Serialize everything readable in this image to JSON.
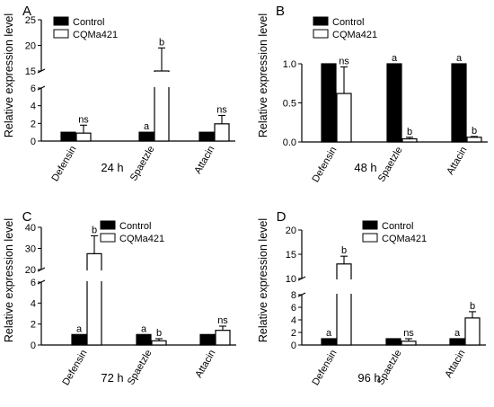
{
  "chart_data": [
    {
      "type": "bar",
      "panel_label": "A",
      "time_label": "24 h",
      "ylabel": "Relative expression level",
      "categories": [
        "Defensin",
        "Spaetzle",
        "Attacin"
      ],
      "axis_break": true,
      "y_segments": [
        {
          "range": [
            0,
            6
          ],
          "ticks": [
            "0",
            "2",
            "4",
            "6"
          ]
        },
        {
          "range": [
            15,
            25
          ],
          "ticks": [
            "15",
            "20",
            "25"
          ]
        }
      ],
      "series": [
        {
          "name": "Control",
          "color": "#000000",
          "values": [
            1,
            1,
            1
          ],
          "errors": [
            0,
            0,
            0
          ],
          "annotations": [
            "",
            "a",
            ""
          ]
        },
        {
          "name": "CQMa421",
          "color": "#ffffff",
          "values": [
            0.9,
            14.2,
            1.95
          ],
          "errors": [
            0.9,
            5.3,
            0.95
          ],
          "annotations": [
            "ns",
            "b",
            "ns"
          ]
        }
      ],
      "legend": "top-left"
    },
    {
      "type": "bar",
      "panel_label": "B",
      "time_label": "48 h",
      "ylabel": "Relative expression level",
      "categories": [
        "Defensin",
        "Spaetzle",
        "Attacin"
      ],
      "axis_break": false,
      "y_segments": [
        {
          "range": [
            0,
            1.0
          ],
          "ticks": [
            "0.0",
            "0.5",
            "1.0"
          ]
        }
      ],
      "series": [
        {
          "name": "Control",
          "color": "#000000",
          "values": [
            1.0,
            1.0,
            1.0
          ],
          "errors": [
            0,
            0,
            0
          ],
          "annotations": [
            "",
            "a",
            "a"
          ]
        },
        {
          "name": "CQMa421",
          "color": "#ffffff",
          "values": [
            0.62,
            0.04,
            0.06
          ],
          "errors": [
            0.34,
            0.02,
            0.01
          ],
          "annotations": [
            "ns",
            "b",
            "b"
          ]
        }
      ],
      "legend": "top-left"
    },
    {
      "type": "bar",
      "panel_label": "C",
      "time_label": "72 h",
      "ylabel": "Relative expression level",
      "categories": [
        "Defensin",
        "Spaetzle",
        "Attacin"
      ],
      "axis_break": true,
      "y_segments": [
        {
          "range": [
            0,
            6
          ],
          "ticks": [
            "0",
            "2",
            "4",
            "6"
          ]
        },
        {
          "range": [
            20,
            40
          ],
          "ticks": [
            "20",
            "30",
            "40"
          ]
        }
      ],
      "series": [
        {
          "name": "Control",
          "color": "#000000",
          "values": [
            1,
            1,
            1
          ],
          "errors": [
            0,
            0,
            0
          ],
          "annotations": [
            "a",
            "a",
            ""
          ]
        },
        {
          "name": "CQMa421",
          "color": "#ffffff",
          "values": [
            27.5,
            0.4,
            1.4
          ],
          "errors": [
            8.5,
            0.2,
            0.4
          ],
          "annotations": [
            "b",
            "b",
            "ns"
          ]
        }
      ],
      "legend": "top-left"
    },
    {
      "type": "bar",
      "panel_label": "D",
      "time_label": "96 h",
      "ylabel": "Relative expression level",
      "categories": [
        "Defensin",
        "Spaetzle",
        "Attacin"
      ],
      "axis_break": true,
      "y_segments": [
        {
          "range": [
            0,
            8
          ],
          "ticks": [
            "0",
            "2",
            "4",
            "6",
            "8"
          ]
        },
        {
          "range": [
            10,
            20
          ],
          "ticks": [
            "10",
            "15",
            "20"
          ]
        }
      ],
      "series": [
        {
          "name": "Control",
          "color": "#000000",
          "values": [
            1,
            1,
            1
          ],
          "errors": [
            0,
            0,
            0
          ],
          "annotations": [
            "a",
            "",
            "a"
          ]
        },
        {
          "name": "CQMa421",
          "color": "#ffffff",
          "values": [
            13.0,
            0.6,
            4.3
          ],
          "errors": [
            1.6,
            0.4,
            1.0
          ],
          "annotations": [
            "b",
            "ns",
            "b"
          ]
        }
      ],
      "legend": "top-left"
    }
  ]
}
